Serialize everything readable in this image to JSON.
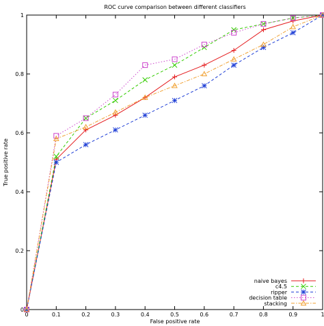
{
  "chart_data": {
    "type": "line",
    "title": "ROC curve comparison between different classifiers",
    "xlabel": "False positive rate",
    "ylabel": "True positive rate",
    "xlim": [
      0,
      1
    ],
    "ylim": [
      0,
      1
    ],
    "x_ticks": [
      0,
      0.1,
      0.2,
      0.3,
      0.4,
      0.5,
      0.6,
      0.7,
      0.8,
      0.9,
      1
    ],
    "x_tick_labels": [
      "0",
      "0.1",
      "0.2",
      "0.3",
      "0.4",
      "0.5",
      "0.6",
      "0.7",
      "0.8",
      "0.9",
      "1"
    ],
    "y_ticks": [
      0,
      0.2,
      0.4,
      0.6,
      0.8,
      1
    ],
    "y_tick_labels": [
      "0",
      "0.2",
      "0.4",
      "0.6",
      "0.8",
      "1"
    ],
    "grid": false,
    "legend_position": "bottom-right",
    "series": [
      {
        "name": "naive bayes",
        "color": "#e41a1c",
        "line_style": "solid",
        "marker": "plus",
        "x": [
          0,
          0.1,
          0.2,
          0.3,
          0.4,
          0.5,
          0.6,
          0.7,
          0.8,
          0.9,
          1
        ],
        "y": [
          0,
          0.51,
          0.61,
          0.66,
          0.72,
          0.79,
          0.83,
          0.88,
          0.95,
          0.98,
          1
        ]
      },
      {
        "name": "c4.5",
        "color": "#33cc00",
        "line_style": "dashed",
        "marker": "cross",
        "x": [
          0,
          0.1,
          0.2,
          0.3,
          0.4,
          0.5,
          0.6,
          0.7,
          0.8,
          0.9,
          1
        ],
        "y": [
          0,
          0.52,
          0.65,
          0.71,
          0.78,
          0.83,
          0.89,
          0.95,
          0.97,
          0.99,
          1
        ]
      },
      {
        "name": "ripper",
        "color": "#1f3fd6",
        "line_style": "dashed",
        "marker": "star",
        "x": [
          0,
          0.1,
          0.2,
          0.3,
          0.4,
          0.5,
          0.6,
          0.7,
          0.8,
          0.9,
          1
        ],
        "y": [
          0,
          0.5,
          0.56,
          0.61,
          0.66,
          0.71,
          0.76,
          0.83,
          0.89,
          0.94,
          1
        ]
      },
      {
        "name": "decision table",
        "color": "#cc44cc",
        "line_style": "dotted",
        "marker": "square",
        "x": [
          0,
          0.1,
          0.2,
          0.3,
          0.4,
          0.5,
          0.6,
          0.7,
          0.8,
          0.9,
          1
        ],
        "y": [
          0,
          0.59,
          0.65,
          0.73,
          0.83,
          0.85,
          0.9,
          0.94,
          0.97,
          0.99,
          1
        ]
      },
      {
        "name": "stacking",
        "color": "#f0a030",
        "line_style": "dashdot",
        "marker": "triangle",
        "x": [
          0,
          0.1,
          0.2,
          0.3,
          0.4,
          0.5,
          0.6,
          0.7,
          0.8,
          0.9,
          1
        ],
        "y": [
          0,
          0.58,
          0.62,
          0.67,
          0.72,
          0.76,
          0.8,
          0.85,
          0.9,
          0.96,
          1
        ]
      }
    ]
  }
}
